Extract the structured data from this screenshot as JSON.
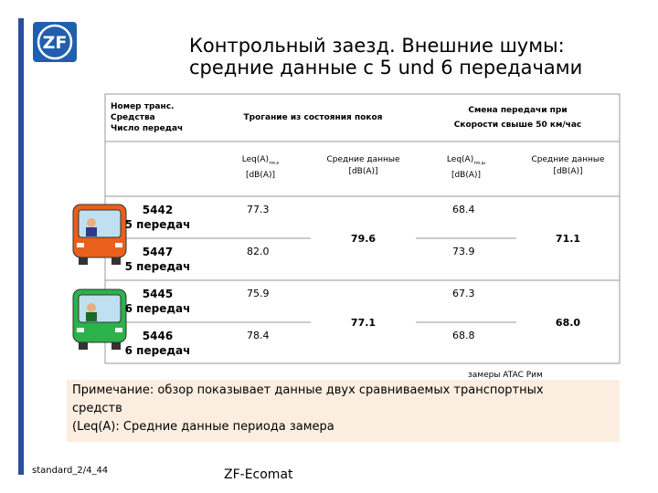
{
  "header": {
    "logo": "ZF",
    "title_line1": "Контрольный заезд. Внешние шумы:",
    "title_line2": "средние данные с 5 und 6 передачами"
  },
  "table": {
    "head": {
      "col1": [
        "Номер транс.",
        "Средства",
        "Число передач"
      ],
      "group1": "Трогание  из состояния покоя",
      "group2": [
        "Смена передачи при",
        "Скорости свыше 50 км/час"
      ]
    },
    "subhead": [
      {
        "name": "Leq(A)",
        "sub": "тм.х",
        "unit": "[dB(A)]"
      },
      {
        "name": "Средние данные",
        "unit": "[dB(A)]"
      },
      {
        "name": "Leq(A)",
        "sub": "тм.ш",
        "unit": "[dB(A)]"
      },
      {
        "name": "Средние данные",
        "unit": "[dB(A)]"
      }
    ],
    "rows": [
      {
        "id": "5442",
        "gears": "5 передач",
        "start": "77.3",
        "shift": "68.4"
      },
      {
        "id": "5447",
        "gears": "5 передач",
        "start": "82.0",
        "shift": "73.9"
      },
      {
        "id": "5445",
        "gears": "6 передач",
        "start": "75.9",
        "shift": "67.3"
      },
      {
        "id": "5446",
        "gears": "6 передач",
        "start": "78.4",
        "shift": "68.8"
      }
    ],
    "averages": [
      {
        "start": "79.6",
        "shift": "71.1"
      },
      {
        "start": "77.1",
        "shift": "68.0"
      }
    ]
  },
  "source": "замеры ATAC Рим",
  "note": [
    "Примечание: обзор показывает данные двух сравниваемых транспортных",
    "средств",
    "(Leq(A): Средние данные периода замера"
  ],
  "footer": {
    "code": "standard_2/4_44",
    "product": "ZF-Ecomat"
  }
}
